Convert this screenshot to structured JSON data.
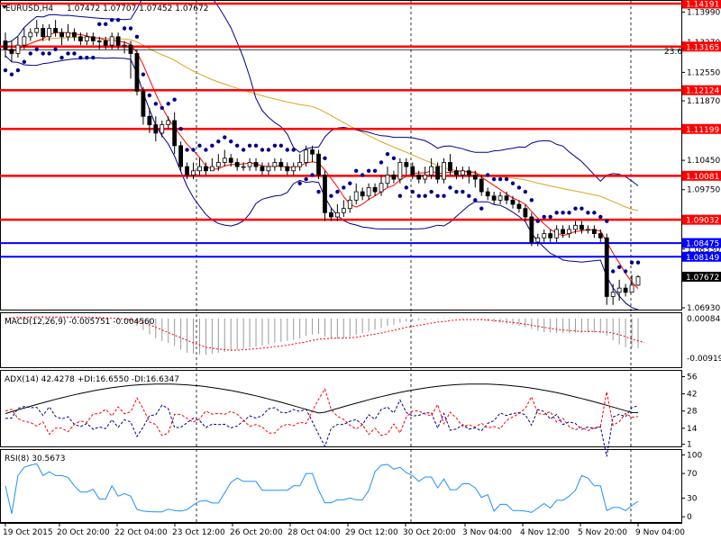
{
  "header": {
    "symbol": "EURUSD,H4",
    "prices": "1.07472 1.07707 1.07452 1.07672"
  },
  "chart_data": {
    "type": "candlestick",
    "price_range": [
      1.0693,
      1.14191
    ],
    "price_ticks": [
      "1.13990",
      "1.13270",
      "1.12550",
      "1.11870",
      "1.11150",
      "1.10450",
      "1.09750",
      "1.09030",
      "1.08330",
      "1.07630",
      "1.06930"
    ],
    "tick_values": [
      1.1399,
      1.1327,
      1.1255,
      1.1187,
      1.1115,
      1.1045,
      1.0975,
      1.0903,
      1.0833,
      1.0763,
      1.0693
    ],
    "levels_red": [
      {
        "label": "1.14191",
        "value": 1.14191
      },
      {
        "label": "1.13165",
        "value": 1.13165
      },
      {
        "label": "1.12124",
        "value": 1.12124
      },
      {
        "label": "1.11199",
        "value": 1.11199
      },
      {
        "label": "1.10081",
        "value": 1.10081
      },
      {
        "label": "1.09032",
        "value": 1.09032
      }
    ],
    "levels_blue": [
      {
        "label": "1.08475",
        "value": 1.08475
      },
      {
        "label": "1.08149",
        "value": 1.08149
      }
    ],
    "current_price": {
      "label": "1.07672",
      "value": 1.07672
    },
    "fib_label": "23.6",
    "fib_value": 1.1309,
    "candles": [
      [
        1.133,
        1.131,
        1.135,
        1.129
      ],
      [
        1.131,
        1.13,
        1.133,
        1.128
      ],
      [
        1.13,
        1.132,
        1.134,
        1.129
      ],
      [
        1.132,
        1.134,
        1.136,
        1.131
      ],
      [
        1.134,
        1.135,
        1.136,
        1.133
      ],
      [
        1.135,
        1.136,
        1.138,
        1.134
      ],
      [
        1.136,
        1.134,
        1.137,
        1.133
      ],
      [
        1.134,
        1.136,
        1.137,
        1.133
      ],
      [
        1.136,
        1.135,
        1.138,
        1.134
      ],
      [
        1.135,
        1.134,
        1.136,
        1.132
      ],
      [
        1.134,
        1.135,
        1.137,
        1.133
      ],
      [
        1.135,
        1.134,
        1.136,
        1.133
      ],
      [
        1.134,
        1.133,
        1.135,
        1.132
      ],
      [
        1.133,
        1.134,
        1.135,
        1.132
      ],
      [
        1.134,
        1.133,
        1.135,
        1.132
      ],
      [
        1.133,
        1.133,
        1.134,
        1.131
      ],
      [
        1.133,
        1.132,
        1.134,
        1.131
      ],
      [
        1.132,
        1.134,
        1.135,
        1.131
      ],
      [
        1.134,
        1.132,
        1.135,
        1.131
      ],
      [
        1.132,
        1.132,
        1.133,
        1.13
      ],
      [
        1.132,
        1.13,
        1.133,
        1.124
      ],
      [
        1.13,
        1.121,
        1.131,
        1.12
      ],
      [
        1.121,
        1.115,
        1.122,
        1.113
      ],
      [
        1.115,
        1.113,
        1.117,
        1.111
      ],
      [
        1.113,
        1.111,
        1.115,
        1.109
      ],
      [
        1.111,
        1.113,
        1.114,
        1.11
      ],
      [
        1.113,
        1.114,
        1.115,
        1.112
      ],
      [
        1.114,
        1.108,
        1.116,
        1.106
      ],
      [
        1.108,
        1.103,
        1.109,
        1.102
      ],
      [
        1.103,
        1.101,
        1.104,
        1.1
      ],
      [
        1.101,
        1.102,
        1.104,
        1.1
      ],
      [
        1.102,
        1.103,
        1.105,
        1.101
      ],
      [
        1.103,
        1.102,
        1.104,
        1.101
      ],
      [
        1.102,
        1.103,
        1.105,
        1.102
      ],
      [
        1.103,
        1.104,
        1.106,
        1.102
      ],
      [
        1.104,
        1.105,
        1.107,
        1.103
      ],
      [
        1.105,
        1.104,
        1.106,
        1.103
      ],
      [
        1.104,
        1.103,
        1.105,
        1.102
      ],
      [
        1.103,
        1.103,
        1.104,
        1.102
      ],
      [
        1.103,
        1.104,
        1.105,
        1.102
      ],
      [
        1.104,
        1.103,
        1.105,
        1.102
      ],
      [
        1.103,
        1.102,
        1.104,
        1.101
      ],
      [
        1.102,
        1.103,
        1.104,
        1.101
      ],
      [
        1.103,
        1.104,
        1.105,
        1.102
      ],
      [
        1.104,
        1.103,
        1.105,
        1.102
      ],
      [
        1.103,
        1.102,
        1.104,
        1.101
      ],
      [
        1.102,
        1.103,
        1.104,
        1.101
      ],
      [
        1.103,
        1.104,
        1.106,
        1.102
      ],
      [
        1.104,
        1.107,
        1.108,
        1.103
      ],
      [
        1.107,
        1.106,
        1.108,
        1.104
      ],
      [
        1.106,
        1.101,
        1.107,
        1.1
      ],
      [
        1.101,
        1.092,
        1.102,
        1.09
      ],
      [
        1.092,
        1.091,
        1.093,
        1.09
      ],
      [
        1.091,
        1.092,
        1.094,
        1.09
      ],
      [
        1.092,
        1.093,
        1.095,
        1.091
      ],
      [
        1.093,
        1.095,
        1.096,
        1.092
      ],
      [
        1.095,
        1.097,
        1.099,
        1.094
      ],
      [
        1.097,
        1.096,
        1.098,
        1.095
      ],
      [
        1.096,
        1.098,
        1.099,
        1.095
      ],
      [
        1.098,
        1.097,
        1.099,
        1.096
      ],
      [
        1.097,
        1.099,
        1.101,
        1.096
      ],
      [
        1.099,
        1.101,
        1.103,
        1.098
      ],
      [
        1.101,
        1.1,
        1.102,
        1.099
      ],
      [
        1.1,
        1.104,
        1.105,
        1.099
      ],
      [
        1.104,
        1.103,
        1.105,
        1.101
      ],
      [
        1.103,
        1.101,
        1.104,
        1.1
      ],
      [
        1.101,
        1.1,
        1.102,
        1.099
      ],
      [
        1.1,
        1.101,
        1.103,
        1.099
      ],
      [
        1.101,
        1.103,
        1.105,
        1.1
      ],
      [
        1.103,
        1.1,
        1.104,
        1.099
      ],
      [
        1.1,
        1.104,
        1.105,
        1.099
      ],
      [
        1.104,
        1.102,
        1.106,
        1.101
      ],
      [
        1.102,
        1.101,
        1.103,
        1.1
      ],
      [
        1.101,
        1.102,
        1.103,
        1.1
      ],
      [
        1.102,
        1.101,
        1.103,
        1.099
      ],
      [
        1.101,
        1.1,
        1.102,
        1.098
      ],
      [
        1.1,
        1.097,
        1.101,
        1.096
      ],
      [
        1.097,
        1.096,
        1.098,
        1.095
      ],
      [
        1.096,
        1.095,
        1.097,
        1.094
      ],
      [
        1.095,
        1.096,
        1.097,
        1.094
      ],
      [
        1.096,
        1.095,
        1.097,
        1.094
      ],
      [
        1.095,
        1.094,
        1.096,
        1.093
      ],
      [
        1.094,
        1.093,
        1.095,
        1.092
      ],
      [
        1.093,
        1.091,
        1.094,
        1.09
      ],
      [
        1.091,
        1.085,
        1.092,
        1.084
      ],
      [
        1.085,
        1.086,
        1.087,
        1.084
      ],
      [
        1.086,
        1.087,
        1.088,
        1.085
      ],
      [
        1.087,
        1.086,
        1.088,
        1.085
      ],
      [
        1.086,
        1.088,
        1.089,
        1.085
      ],
      [
        1.088,
        1.087,
        1.089,
        1.086
      ],
      [
        1.087,
        1.088,
        1.089,
        1.086
      ],
      [
        1.088,
        1.089,
        1.09,
        1.087
      ],
      [
        1.089,
        1.088,
        1.09,
        1.087
      ],
      [
        1.088,
        1.088,
        1.089,
        1.087
      ],
      [
        1.088,
        1.087,
        1.089,
        1.086
      ],
      [
        1.087,
        1.086,
        1.088,
        1.085
      ],
      [
        1.086,
        1.072,
        1.087,
        1.07
      ],
      [
        1.072,
        1.073,
        1.075,
        1.07
      ],
      [
        1.073,
        1.074,
        1.076,
        1.071
      ],
      [
        1.074,
        1.073,
        1.075,
        1.072
      ],
      [
        1.073,
        1.0747,
        1.0771,
        1.0745
      ],
      [
        1.0747,
        1.0767,
        1.0771,
        1.0745
      ]
    ],
    "date_labels": [
      "19 Oct 2015",
      "20 Oct 20:00",
      "22 Oct 04:00",
      "23 Oct 12:00",
      "26 Oct 20:00",
      "28 Oct 04:00",
      "29 Oct 12:00",
      "30 Oct 20:00",
      "3 Nov 04:00",
      "4 Nov 12:00",
      "5 Nov 20:00",
      "9 Nov 04:00"
    ],
    "macd": {
      "label": "MACD(12,26,9) -0.005751 -0.004560",
      "ticks": [
        "0.000848",
        "-0.009195"
      ],
      "range": [
        -0.009195,
        0.000848
      ],
      "histogram": [
        0.0002,
        0.0003,
        0.0004,
        0.0004,
        0.0005,
        0.0005,
        0.0005,
        0.0004,
        0.0004,
        0.0003,
        0.0003,
        0.0002,
        0.0002,
        0.0001,
        0.0001,
        0.0,
        -0.0001,
        -0.0001,
        -0.0002,
        -0.0003,
        -0.0006,
        -0.0014,
        -0.0022,
        -0.003,
        -0.0038,
        -0.0043,
        -0.0047,
        -0.0053,
        -0.006,
        -0.0066,
        -0.0068,
        -0.0069,
        -0.007,
        -0.0068,
        -0.0066,
        -0.0064,
        -0.0062,
        -0.006,
        -0.0058,
        -0.0056,
        -0.0054,
        -0.0052,
        -0.005,
        -0.0047,
        -0.0045,
        -0.0043,
        -0.0041,
        -0.0038,
        -0.0034,
        -0.0031,
        -0.003,
        -0.0035,
        -0.0038,
        -0.0039,
        -0.0038,
        -0.0035,
        -0.0031,
        -0.0028,
        -0.0025,
        -0.0022,
        -0.0018,
        -0.0014,
        -0.0012,
        -0.0008,
        -0.0006,
        -0.0005,
        -0.0004,
        -0.0003,
        -0.0001,
        -0.0001,
        0.0001,
        0.0001,
        0.0001,
        0.0001,
        0.0,
        -0.0001,
        -0.0003,
        -0.0005,
        -0.0007,
        -0.0008,
        -0.001,
        -0.0012,
        -0.0014,
        -0.0016,
        -0.002,
        -0.0024,
        -0.0026,
        -0.0027,
        -0.0028,
        -0.0028,
        -0.0028,
        -0.0027,
        -0.0027,
        -0.0027,
        -0.0027,
        -0.0028,
        -0.0033,
        -0.0042,
        -0.005,
        -0.0055,
        -0.0056,
        -0.0057
      ],
      "signal": [
        0.0,
        0.0001,
        0.0002,
        0.0002,
        0.0003,
        0.0003,
        0.0003,
        0.0003,
        0.0003,
        0.0003,
        0.0003,
        0.0003,
        0.0003,
        0.0002,
        0.0002,
        0.0002,
        0.0001,
        0.0001,
        0.0,
        -0.0001,
        -0.0002,
        -0.0004,
        -0.0008,
        -0.0012,
        -0.0017,
        -0.0022,
        -0.0027,
        -0.0032,
        -0.0037,
        -0.0042,
        -0.0047,
        -0.0051,
        -0.0055,
        -0.0057,
        -0.0059,
        -0.006,
        -0.0061,
        -0.0061,
        -0.006,
        -0.0059,
        -0.0058,
        -0.0057,
        -0.0056,
        -0.0054,
        -0.0053,
        -0.0051,
        -0.0049,
        -0.0047,
        -0.0045,
        -0.0042,
        -0.004,
        -0.0039,
        -0.0038,
        -0.0038,
        -0.0038,
        -0.0037,
        -0.0036,
        -0.0034,
        -0.0032,
        -0.003,
        -0.0028,
        -0.0025,
        -0.0023,
        -0.002,
        -0.0017,
        -0.0015,
        -0.0013,
        -0.0011,
        -0.0009,
        -0.0007,
        -0.0006,
        -0.0004,
        -0.0003,
        -0.0002,
        -0.0002,
        -0.0002,
        -0.0002,
        -0.0003,
        -0.0004,
        -0.0005,
        -0.0006,
        -0.0008,
        -0.0009,
        -0.0011,
        -0.0013,
        -0.0015,
        -0.0017,
        -0.0019,
        -0.0021,
        -0.0022,
        -0.0023,
        -0.0024,
        -0.0025,
        -0.0025,
        -0.0025,
        -0.0026,
        -0.0026,
        -0.0028,
        -0.0031,
        -0.0035,
        -0.004,
        -0.0043,
        -0.0046
      ]
    },
    "adx": {
      "label": "ADX(14) 42.4278 +DI:16.6550 -DI:16.6347",
      "ticks": [
        "56",
        "42",
        "28",
        "14",
        "1"
      ],
      "tick_values": [
        56,
        42,
        28,
        14,
        1
      ]
    },
    "rsi": {
      "label": "RSI(8) 30.5673",
      "ticks": [
        "100",
        "70",
        "30",
        "0"
      ],
      "tick_values": [
        100,
        70,
        30,
        0
      ]
    },
    "colors": {
      "red": "#ff0000",
      "blue": "#0000ff",
      "navy": "#00008b",
      "gold": "#daa520",
      "gray": "#9a9a9a",
      "cyan": "#1e90ff"
    }
  }
}
